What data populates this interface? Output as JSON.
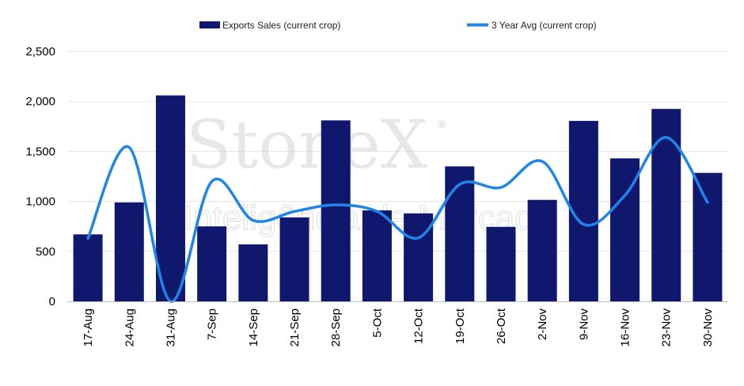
{
  "chart_data": {
    "type": "bar",
    "categories": [
      "17-Aug",
      "24-Aug",
      "31-Aug",
      "7-Sep",
      "14-Sep",
      "21-Sep",
      "28-Sep",
      "5-Oct",
      "12-Oct",
      "19-Oct",
      "26-Oct",
      "2-Nov",
      "9-Nov",
      "16-Nov",
      "23-Nov",
      "30-Nov"
    ],
    "series": [
      {
        "name": "Exports Sales (current crop)",
        "type": "bar",
        "values": [
          670,
          990,
          2060,
          750,
          570,
          840,
          1810,
          910,
          880,
          1350,
          745,
          1015,
          1805,
          1430,
          1925,
          1285
        ]
      },
      {
        "name": "3 Year Avg (current crop)",
        "type": "line",
        "values": [
          630,
          1540,
          0,
          1200,
          810,
          900,
          965,
          900,
          635,
          1170,
          1140,
          1400,
          770,
          1060,
          1640,
          990
        ]
      }
    ],
    "ylim": [
      0,
      2500
    ],
    "yticks": [
      0,
      500,
      1000,
      1500,
      2000,
      2500
    ],
    "ytick_labels": [
      "0",
      "500",
      "1,000",
      "1,500",
      "2,000",
      "2,500"
    ],
    "grid": true,
    "legend_position": "top-center",
    "colors": {
      "bar": "#10186e",
      "line": "#1f86e8",
      "grid": "#e6e6e6"
    }
  },
  "watermark": {
    "brand": "StoneX",
    "trademark": "®",
    "tagline": "Inteligência de Mercado"
  }
}
